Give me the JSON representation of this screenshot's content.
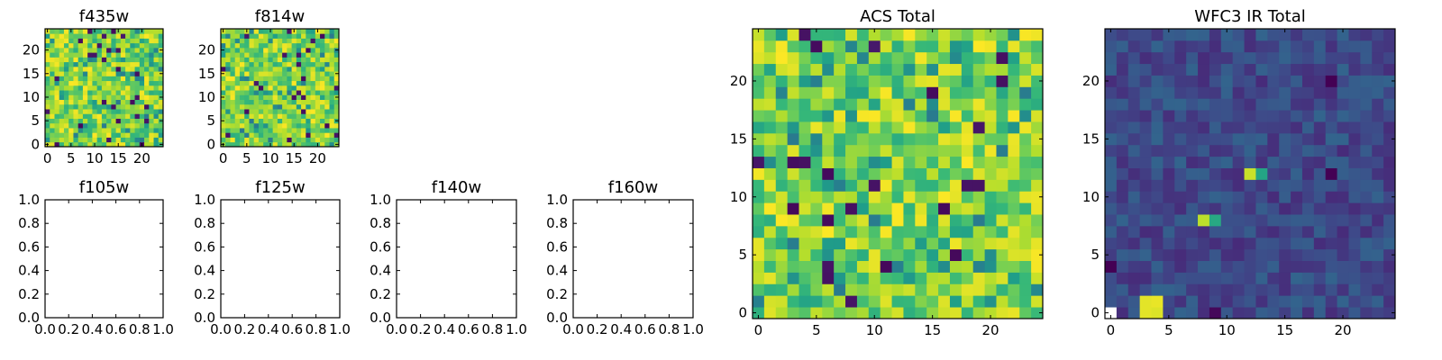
{
  "chart_data": [
    {
      "type": "heatmap",
      "title": "f435w",
      "rows": 25,
      "cols": 25,
      "xticks": [
        "0",
        "5",
        "10",
        "15",
        "20"
      ],
      "yticks": [
        "0",
        "5",
        "10",
        "15",
        "20"
      ],
      "colormap": "viridis",
      "value_range": [
        0,
        1
      ],
      "field": "noise"
    },
    {
      "type": "heatmap",
      "title": "f814w",
      "rows": 25,
      "cols": 25,
      "xticks": [
        "0",
        "5",
        "10",
        "15",
        "20"
      ],
      "yticks": [
        "0",
        "5",
        "10",
        "15",
        "20"
      ],
      "colormap": "viridis",
      "value_range": [
        0,
        1
      ],
      "field": "noise"
    },
    {
      "type": "scatter",
      "title": "f105w",
      "xlim": [
        0,
        1
      ],
      "ylim": [
        0,
        1
      ],
      "xticks": [
        "0.0",
        "0.2",
        "0.4",
        "0.6",
        "0.8",
        "1.0"
      ],
      "yticks": [
        "0.0",
        "0.2",
        "0.4",
        "0.6",
        "0.8",
        "1.0"
      ],
      "series": []
    },
    {
      "type": "scatter",
      "title": "f125w",
      "xlim": [
        0,
        1
      ],
      "ylim": [
        0,
        1
      ],
      "xticks": [
        "0.0",
        "0.2",
        "0.4",
        "0.6",
        "0.8",
        "1.0"
      ],
      "yticks": [
        "0.0",
        "0.2",
        "0.4",
        "0.6",
        "0.8",
        "1.0"
      ],
      "series": []
    },
    {
      "type": "scatter",
      "title": "f140w",
      "xlim": [
        0,
        1
      ],
      "ylim": [
        0,
        1
      ],
      "xticks": [
        "0.0",
        "0.2",
        "0.4",
        "0.6",
        "0.8",
        "1.0"
      ],
      "yticks": [
        "0.0",
        "0.2",
        "0.4",
        "0.6",
        "0.8",
        "1.0"
      ],
      "series": []
    },
    {
      "type": "scatter",
      "title": "f160w",
      "xlim": [
        0,
        1
      ],
      "ylim": [
        0,
        1
      ],
      "xticks": [
        "0.0",
        "0.2",
        "0.4",
        "0.6",
        "0.8",
        "1.0"
      ],
      "yticks": [
        "0.0",
        "0.2",
        "0.4",
        "0.6",
        "0.8",
        "1.0"
      ],
      "series": []
    },
    {
      "type": "heatmap",
      "title": "ACS Total",
      "rows": 25,
      "cols": 25,
      "xticks": [
        "0",
        "5",
        "10",
        "15",
        "20"
      ],
      "yticks": [
        "0",
        "5",
        "10",
        "15",
        "20"
      ],
      "colormap": "viridis",
      "value_range": [
        0,
        1
      ],
      "field": "noise"
    },
    {
      "type": "heatmap",
      "title": "WFC3 IR Total",
      "rows": 25,
      "cols": 25,
      "xticks": [
        "0",
        "5",
        "10",
        "15",
        "20"
      ],
      "yticks": [
        "0",
        "5",
        "10",
        "15",
        "20"
      ],
      "colormap": "viridis",
      "value_range": [
        0,
        1
      ],
      "field": "low-background",
      "bright_pixels": [
        {
          "x": 3,
          "y": 0,
          "value": 0.96
        },
        {
          "x": 3,
          "y": 1,
          "value": 0.96
        },
        {
          "x": 4,
          "y": 0,
          "value": 0.95
        },
        {
          "x": 4,
          "y": 1,
          "value": 0.97
        },
        {
          "x": 8,
          "y": 8,
          "value": 0.9
        },
        {
          "x": 9,
          "y": 8,
          "value": 0.6
        },
        {
          "x": 12,
          "y": 12,
          "value": 0.92
        },
        {
          "x": 13,
          "y": 12,
          "value": 0.58
        },
        {
          "x": 0,
          "y": 0,
          "value": 1.0
        }
      ],
      "dark_pixels": [
        {
          "x": 0,
          "y": 4,
          "value": 0.0
        },
        {
          "x": 19,
          "y": 12,
          "value": 0.0
        },
        {
          "x": 9,
          "y": 0,
          "value": 0.02
        },
        {
          "x": 19,
          "y": 20,
          "value": 0.0
        }
      ]
    }
  ]
}
